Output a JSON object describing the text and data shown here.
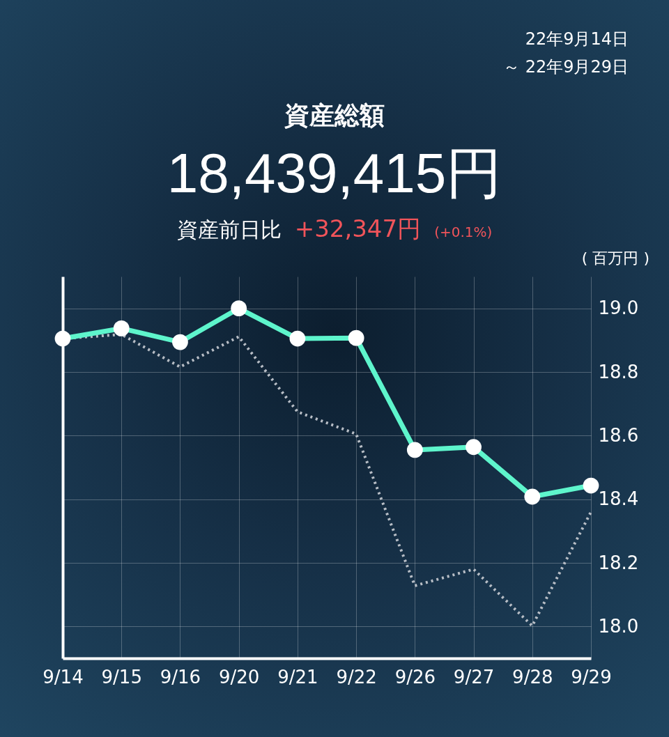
{
  "chart_data": {
    "type": "line",
    "title": "資産総額",
    "subtitle": "18,439,415円",
    "ylabel": "( 百万円 )",
    "annotations": [
      "22年9月14日",
      "～ 22年9月29日",
      "資産前日比",
      "+32,347円",
      "(+0.1%)"
    ],
    "categories": [
      "9/14",
      "9/15",
      "9/16",
      "9/20",
      "9/21",
      "9/22",
      "9/26",
      "9/27",
      "9/28",
      "9/29"
    ],
    "series": [
      {
        "color": "#5ef5cc",
        "line_style": "solid",
        "marker": "circle",
        "values": [
          18.905,
          18.937,
          18.894,
          19.0,
          18.905,
          18.907,
          18.555,
          18.564,
          18.408,
          18.443
        ]
      },
      {
        "color": "#b8bec6",
        "line_style": "dotted",
        "marker": "none",
        "values": [
          18.905,
          18.918,
          18.816,
          18.911,
          18.675,
          18.605,
          18.128,
          18.18,
          18.002,
          18.36
        ]
      }
    ],
    "ylim": [
      17.9,
      19.1
    ],
    "yticks": [
      {
        "value": 18,
        "label": "18.0"
      },
      {
        "value": 18.2,
        "label": "18.2"
      },
      {
        "value": 18.4,
        "label": "18.4"
      },
      {
        "value": 18.6,
        "label": "18.6"
      },
      {
        "value": 18.8,
        "label": "18.8"
      },
      {
        "value": 19,
        "label": "19.0"
      }
    ],
    "grid": true
  }
}
